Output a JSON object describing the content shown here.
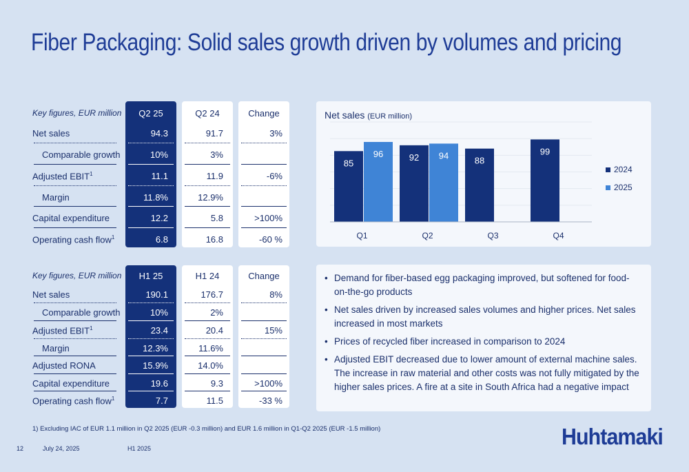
{
  "title": "Fiber Packaging: Solid sales growth driven by volumes and pricing",
  "q_table": {
    "header": {
      "label": "Key figures, EUR million",
      "cur": "Q2 25",
      "prev": "Q2 24",
      "chg": "Change"
    },
    "rows": [
      {
        "label": "Net sales",
        "cur": "94.3",
        "prev": "91.7",
        "chg": "3%"
      },
      {
        "label": "Comparable growth",
        "cur": "10%",
        "prev": "3%",
        "chg": ""
      },
      {
        "label": "Adjusted EBIT",
        "sup": "1",
        "cur": "11.1",
        "prev": "11.9",
        "chg": "-6%"
      },
      {
        "label": "Margin",
        "cur": "11.8%",
        "prev": "12.9%",
        "chg": ""
      },
      {
        "label": "Capital expenditure",
        "cur": "12.2",
        "prev": "5.8",
        "chg": ">100%"
      },
      {
        "label": "Operating cash flow",
        "sup": "1",
        "cur": "6.8",
        "prev": "16.8",
        "chg": "-60 %"
      }
    ]
  },
  "h_table": {
    "header": {
      "label": "Key figures, EUR million",
      "cur": "H1 25",
      "prev": "H1 24",
      "chg": "Change"
    },
    "rows": [
      {
        "label": "Net sales",
        "cur": "190.1",
        "prev": "176.7",
        "chg": "8%"
      },
      {
        "label": "Comparable growth",
        "cur": "10%",
        "prev": "2%",
        "chg": ""
      },
      {
        "label": "Adjusted EBIT",
        "sup": "1",
        "cur": "23.4",
        "prev": "20.4",
        "chg": "15%"
      },
      {
        "label": "Margin",
        "cur": "12.3%",
        "prev": "11.6%",
        "chg": ""
      },
      {
        "label": "Adjusted RONA",
        "cur": "15.9%",
        "prev": "14.0%",
        "chg": ""
      },
      {
        "label": "Capital expenditure",
        "cur": "19.6",
        "prev": "9.3",
        "chg": ">100%"
      },
      {
        "label": "Operating cash flow",
        "sup": "1",
        "cur": "7.7",
        "prev": "11.5",
        "chg": "-33 %"
      }
    ]
  },
  "chart_data": {
    "type": "bar",
    "title": "Net sales",
    "unit": "(EUR million)",
    "categories": [
      "Q1",
      "Q2",
      "Q3",
      "Q4"
    ],
    "series": [
      {
        "name": "2024",
        "values": [
          85,
          92,
          88,
          99
        ],
        "color": "#14317a"
      },
      {
        "name": "2025",
        "values": [
          96,
          94,
          null,
          null
        ],
        "color": "#3f84d6"
      }
    ],
    "ylim": [
      0,
      120
    ],
    "grid": true,
    "legend": "right"
  },
  "bullets": [
    "Demand for fiber-based egg packaging improved, but softened for food-on-the-go products",
    "Net sales driven by increased sales volumes and higher prices. Net sales increased in most markets",
    "Prices of recycled fiber increased in comparison to 2024",
    "Adjusted EBIT decreased due to lower amount of external machine sales. The increase in raw material and other costs was not fully mitigated by the higher sales prices. A fire at a site in South Africa had a negative impact"
  ],
  "footnote": "1) Excluding IAC of EUR 1.1 million in Q2 2025 (EUR -0.3 million) and EUR 1.6 million in Q1-Q2 2025 (EUR -1.5 million)",
  "footer": {
    "page": "12",
    "date": "July 24, 2025",
    "period": "H1 2025"
  },
  "logo": "Huhtamaki",
  "colors": {
    "accent": "#1e3c96",
    "dark_blue": "#14317a",
    "light_blue": "#3f84d6",
    "background": "#d6e2f2"
  }
}
